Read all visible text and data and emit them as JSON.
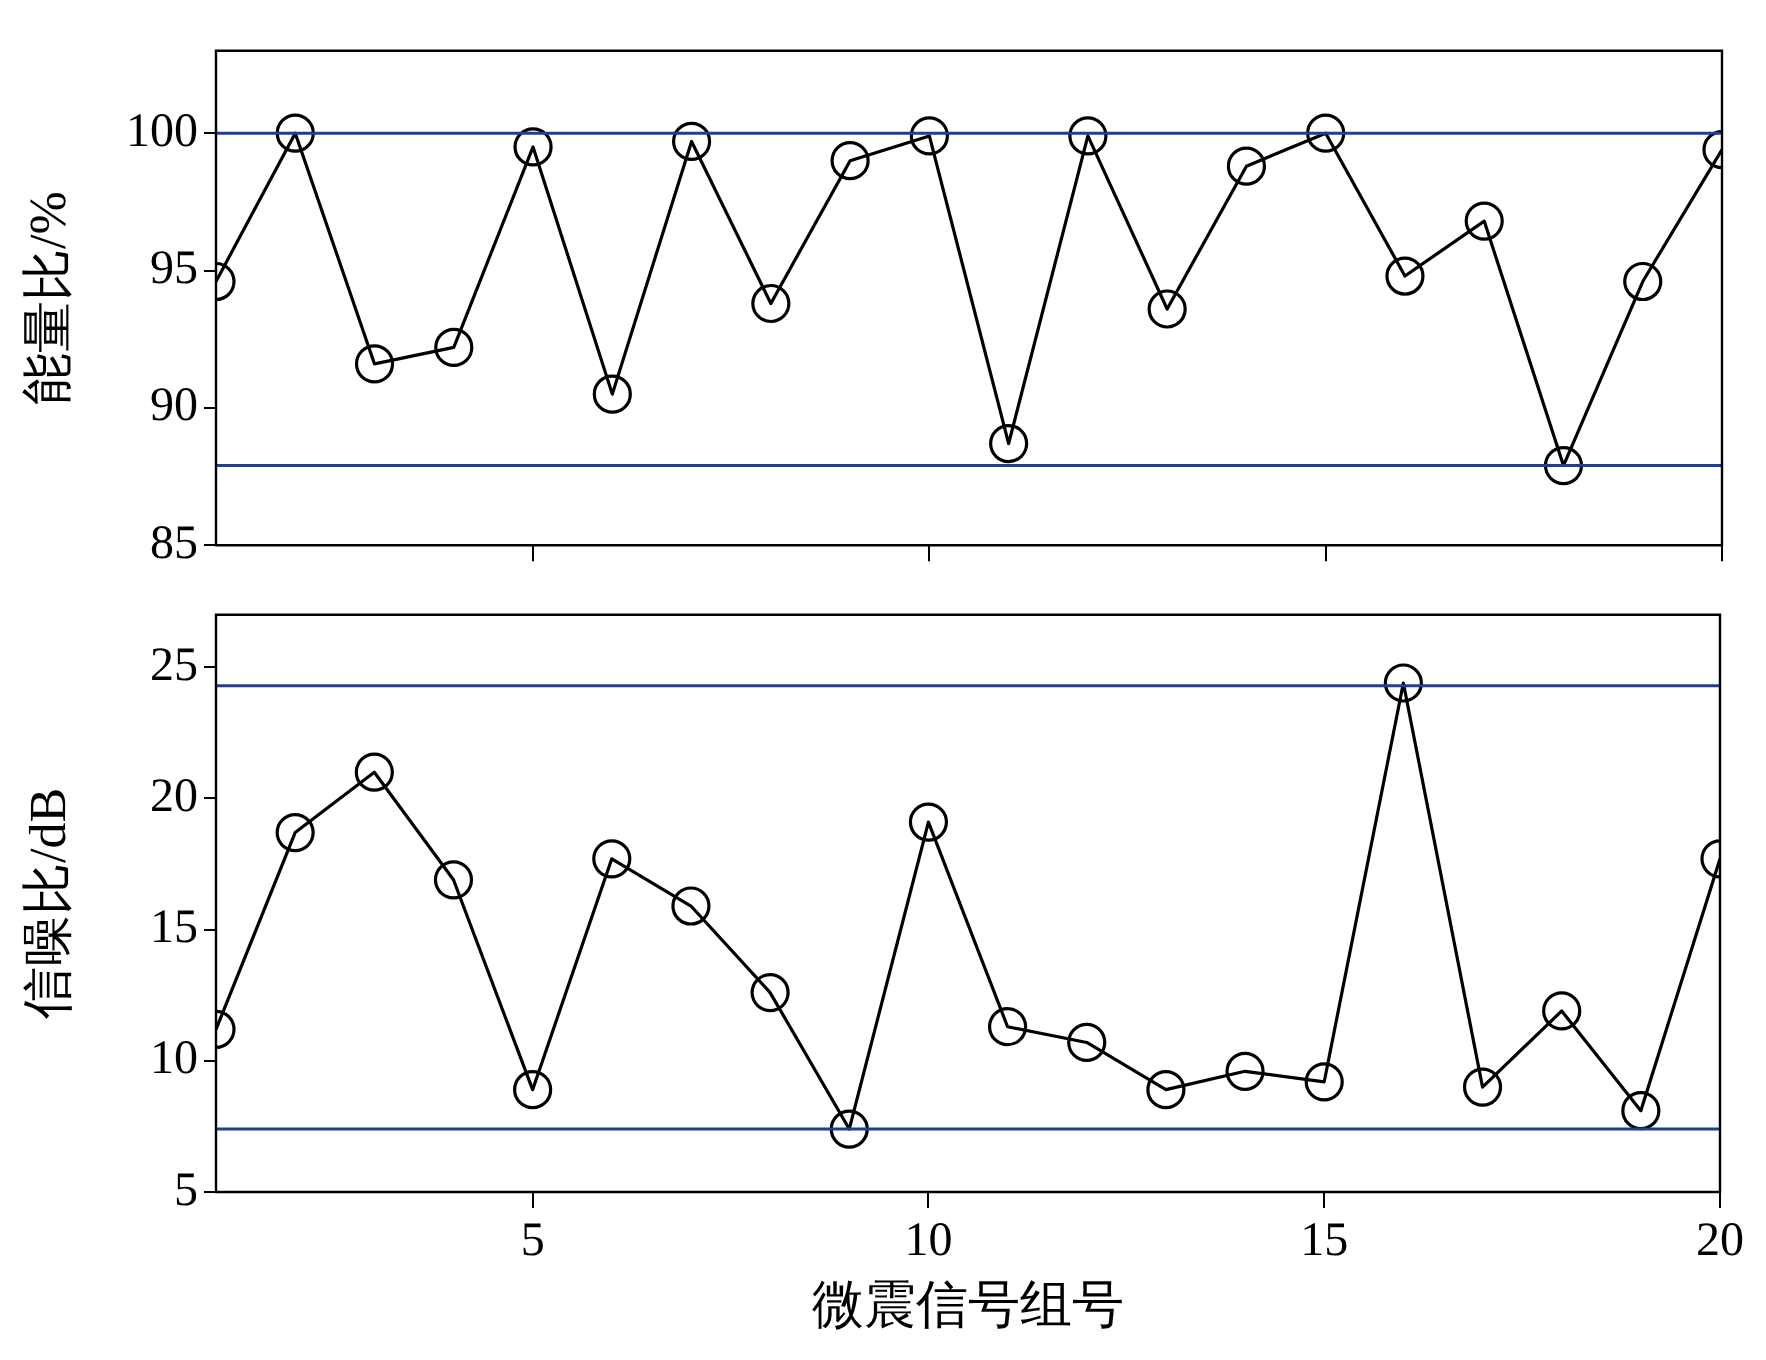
{
  "chart_data": [
    {
      "type": "line",
      "ylabel": "能量比/%",
      "x": [
        1,
        2,
        3,
        4,
        5,
        6,
        7,
        8,
        9,
        10,
        11,
        12,
        13,
        14,
        15,
        16,
        17,
        18,
        19,
        20
      ],
      "xlim": [
        1,
        20
      ],
      "xticks": [
        5,
        10,
        15,
        20
      ],
      "ylim": [
        85,
        103
      ],
      "yticks": [
        85,
        90,
        95,
        100
      ],
      "tick_labels": "y",
      "marker": "circle",
      "grid": false,
      "legend": false,
      "series": [
        {
          "color": "#000000",
          "values": [
            94.6,
            100,
            91.6,
            92.2,
            99.5,
            90.5,
            99.7,
            93.8,
            99.0,
            99.9,
            88.7,
            99.9,
            93.6,
            98.8,
            100,
            94.8,
            96.8,
            87.9,
            94.6,
            99.4
          ]
        }
      ],
      "ref_lines": [
        {
          "axis": "y",
          "value": 100,
          "color": "#1f3d99"
        },
        {
          "axis": "y",
          "value": 87.9,
          "color": "#1f3d99"
        }
      ]
    },
    {
      "type": "line",
      "xlabel": "微震信号组号",
      "ylabel": "信噪比/dB",
      "x": [
        1,
        2,
        3,
        4,
        5,
        6,
        7,
        8,
        9,
        10,
        11,
        12,
        13,
        14,
        15,
        16,
        17,
        18,
        19,
        20
      ],
      "xlim": [
        1,
        20
      ],
      "xticks": [
        5,
        10,
        15,
        20
      ],
      "ylim": [
        5,
        27
      ],
      "yticks": [
        5,
        10,
        15,
        20,
        25
      ],
      "marker": "circle",
      "grid": false,
      "legend": false,
      "series": [
        {
          "color": "#000000",
          "values": [
            11.2,
            18.7,
            21.0,
            16.9,
            8.9,
            17.7,
            15.9,
            12.6,
            7.4,
            19.1,
            11.3,
            10.7,
            8.9,
            9.6,
            9.2,
            24.4,
            9.0,
            11.9,
            8.1,
            17.7
          ]
        }
      ],
      "ref_lines": [
        {
          "axis": "y",
          "value": 24.3,
          "color": "#1f3d99"
        },
        {
          "axis": "y",
          "value": 7.4,
          "color": "#1f3d99"
        }
      ]
    }
  ]
}
